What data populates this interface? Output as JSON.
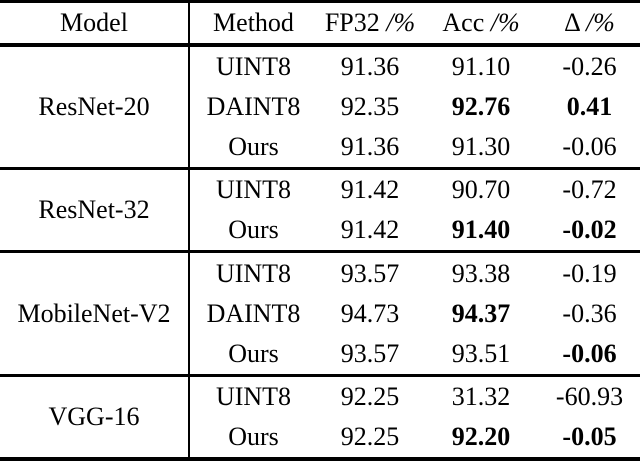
{
  "page": {
    "background": "#ffffff",
    "text_color": "#000000",
    "rule_color": "#000000"
  },
  "table": {
    "columns": [
      {
        "label": "Model",
        "unit": ""
      },
      {
        "label": "Method",
        "unit": ""
      },
      {
        "label": "FP32",
        "unit": "/%"
      },
      {
        "label": "Acc",
        "unit": "/%"
      },
      {
        "label": "Δ",
        "unit": "/%"
      }
    ],
    "groups": [
      {
        "model": "ResNet-20",
        "rows": [
          {
            "method": "UINT8",
            "fp32": "91.36",
            "acc": "91.10",
            "delta": "-0.26",
            "acc_bold": false,
            "delta_bold": false
          },
          {
            "method": "DAINT8",
            "fp32": "92.35",
            "acc": "92.76",
            "delta": "0.41",
            "acc_bold": true,
            "delta_bold": true
          },
          {
            "method": "Ours",
            "fp32": "91.36",
            "acc": "91.30",
            "delta": "-0.06",
            "acc_bold": false,
            "delta_bold": false
          }
        ]
      },
      {
        "model": "ResNet-32",
        "rows": [
          {
            "method": "UINT8",
            "fp32": "91.42",
            "acc": "90.70",
            "delta": "-0.72",
            "acc_bold": false,
            "delta_bold": false
          },
          {
            "method": "Ours",
            "fp32": "91.42",
            "acc": "91.40",
            "delta": "-0.02",
            "acc_bold": true,
            "delta_bold": true
          }
        ]
      },
      {
        "model": "MobileNet-V2",
        "rows": [
          {
            "method": "UINT8",
            "fp32": "93.57",
            "acc": "93.38",
            "delta": "-0.19",
            "acc_bold": false,
            "delta_bold": false
          },
          {
            "method": "DAINT8",
            "fp32": "94.73",
            "acc": "94.37",
            "delta": "-0.36",
            "acc_bold": true,
            "delta_bold": false
          },
          {
            "method": "Ours",
            "fp32": "93.57",
            "acc": "93.51",
            "delta": "-0.06",
            "acc_bold": false,
            "delta_bold": true
          }
        ]
      },
      {
        "model": "VGG-16",
        "rows": [
          {
            "method": "UINT8",
            "fp32": "92.25",
            "acc": "31.32",
            "delta": "-60.93",
            "acc_bold": false,
            "delta_bold": false
          },
          {
            "method": "Ours",
            "fp32": "92.25",
            "acc": "92.20",
            "delta": "-0.05",
            "acc_bold": true,
            "delta_bold": true
          }
        ]
      }
    ]
  }
}
